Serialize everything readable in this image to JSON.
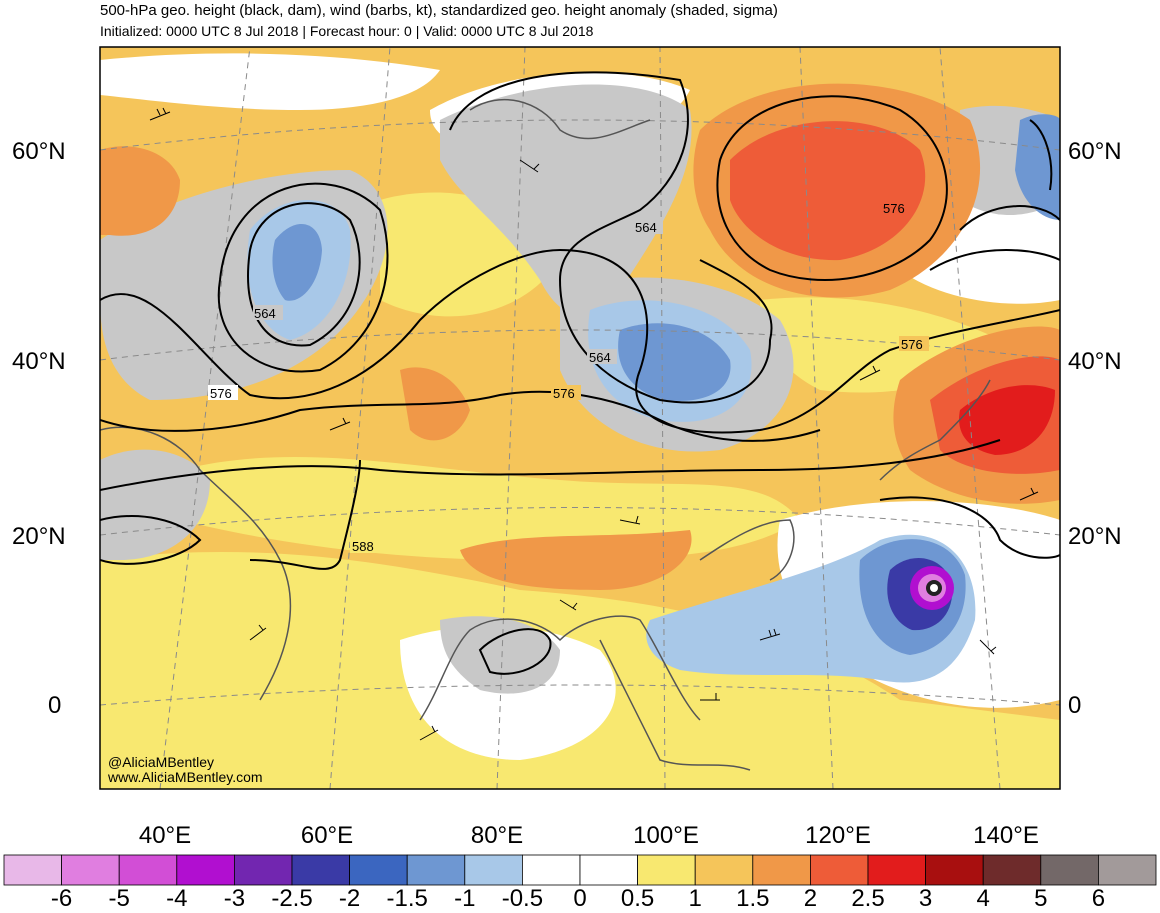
{
  "header": {
    "title": "500-hPa geo. height (black, dam), wind (barbs, kt), standardized geo. height anomaly (shaded, sigma)",
    "subtitle": "Initialized: 0000 UTC 8 Jul 2018 | Forecast hour: 0 | Valid: 0000 UTC 8 Jul 2018"
  },
  "axes": {
    "latitudes": [
      "60°N",
      "40°N",
      "20°N",
      "0"
    ],
    "longitudes": [
      "40°E",
      "60°E",
      "80°E",
      "100°E",
      "120°E",
      "140°E"
    ]
  },
  "contour_labels": [
    "564",
    "564",
    "564",
    "576",
    "576",
    "576",
    "576",
    "588"
  ],
  "credits": {
    "handle": "@AliciaMBentley",
    "website": "www.AliciaMBentley.com"
  },
  "colorbar": {
    "ticks": [
      "-6",
      "-5",
      "-4",
      "-3",
      "-2.5",
      "-2",
      "-1.5",
      "-1",
      "-0.5",
      "0",
      "0.5",
      "1",
      "1.5",
      "2",
      "2.5",
      "3",
      "4",
      "5",
      "6"
    ],
    "colors": [
      "#e8b8e8",
      "#e07ee0",
      "#d24ed6",
      "#b10fd0",
      "#7226b0",
      "#3a3aa6",
      "#3b66c0",
      "#6e97d2",
      "#a8c8e8",
      "#ffffff",
      "#ffffff",
      "#f8e870",
      "#f5c55a",
      "#f09848",
      "#ee5c38",
      "#e21c1c",
      "#a80f0f",
      "#6e2b2b",
      "#736868",
      "#a29a9a"
    ]
  },
  "colors": {
    "positive_anomaly_light": "#f8e870",
    "positive_anomaly_mid": "#f5c55a",
    "positive_anomaly_orange": "#f09848",
    "positive_anomaly_red": "#ee5c38",
    "negative_anomaly_light": "#a8c8e8",
    "negative_anomaly_mid": "#6e97d2",
    "neutral_gray": "#c8c8c8",
    "typhoon_core": "#d24ed6"
  }
}
